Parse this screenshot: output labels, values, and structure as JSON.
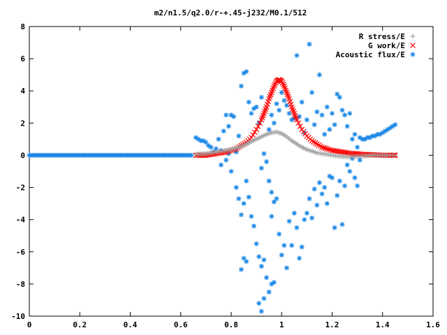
{
  "chart_data": {
    "type": "scatter",
    "title": "m2/n1.5/q2.0/r-+.45-j232/M0.1/512",
    "xlabel": "",
    "ylabel": "",
    "xlim": [
      0,
      1.6
    ],
    "ylim": [
      -10,
      8
    ],
    "x_ticks": [
      0,
      0.2,
      0.4,
      0.6,
      0.8,
      1,
      1.2,
      1.4,
      1.6
    ],
    "x_tick_labels": [
      "0",
      "0.2",
      "0.4",
      "0.6",
      "0.8",
      "1",
      "1.2",
      "1.4",
      "1.6"
    ],
    "y_ticks": [
      -10,
      -8,
      -6,
      -4,
      -2,
      0,
      2,
      4,
      6,
      8
    ],
    "y_tick_labels": [
      "-10",
      "-8",
      "-6",
      "-4",
      "-2",
      "0",
      "2",
      "4",
      "6",
      "8"
    ],
    "grid": false,
    "legend_position": "top-right",
    "series": [
      {
        "name": "Acoustic flux/E",
        "marker": "asterisk",
        "color": "#1a87e6",
        "points": [
          [
            0.0,
            0
          ],
          [
            0.05,
            0
          ],
          [
            0.1,
            0
          ],
          [
            0.15,
            0
          ],
          [
            0.2,
            0
          ],
          [
            0.25,
            0
          ],
          [
            0.3,
            0
          ],
          [
            0.35,
            0
          ],
          [
            0.4,
            0
          ],
          [
            0.45,
            0
          ],
          [
            0.5,
            0
          ],
          [
            0.55,
            0
          ],
          [
            0.6,
            0
          ],
          [
            0.64,
            0
          ],
          [
            0.66,
            1.1
          ],
          [
            0.67,
            1.0
          ],
          [
            0.68,
            0.9
          ],
          [
            0.69,
            0.9
          ],
          [
            0.7,
            0.8
          ],
          [
            0.71,
            0.6
          ],
          [
            0.72,
            0.5
          ],
          [
            0.73,
            0.2
          ],
          [
            0.74,
            0.4
          ],
          [
            0.75,
            1.0
          ],
          [
            0.76,
            0.3
          ],
          [
            0.77,
            1.5
          ],
          [
            0.78,
            2.5
          ],
          [
            0.79,
            1.8
          ],
          [
            0.8,
            2.5
          ],
          [
            0.76,
            -0.6
          ],
          [
            0.78,
            -0.3
          ],
          [
            0.79,
            0.1
          ],
          [
            0.8,
            -1.0
          ],
          [
            0.81,
            2.4
          ],
          [
            0.82,
            0.2
          ],
          [
            0.83,
            1.2
          ],
          [
            0.84,
            4.3
          ],
          [
            0.85,
            5.1
          ],
          [
            0.86,
            5.2
          ],
          [
            0.87,
            3.3
          ],
          [
            0.88,
            2.6
          ],
          [
            0.89,
            2.9
          ],
          [
            0.9,
            3.0
          ],
          [
            0.91,
            2.0
          ],
          [
            0.92,
            3.6
          ],
          [
            0.82,
            -2.0
          ],
          [
            0.83,
            -2.7
          ],
          [
            0.84,
            -3.7
          ],
          [
            0.85,
            -3.0
          ],
          [
            0.86,
            -1.6
          ],
          [
            0.87,
            -2.6
          ],
          [
            0.88,
            -3.8
          ],
          [
            0.89,
            -4.4
          ],
          [
            0.85,
            -6.4
          ],
          [
            0.86,
            -6.6
          ],
          [
            0.84,
            -7.1
          ],
          [
            0.9,
            -5.5
          ],
          [
            0.91,
            -6.3
          ],
          [
            0.92,
            -6.9
          ],
          [
            0.93,
            -6.5
          ],
          [
            0.94,
            -7.6
          ],
          [
            0.91,
            -9.2
          ],
          [
            0.92,
            -9.7
          ],
          [
            0.93,
            -8.9
          ],
          [
            0.95,
            -8.5
          ],
          [
            0.96,
            -8.0
          ],
          [
            0.97,
            -7.9
          ],
          [
            0.96,
            -3.8
          ],
          [
            0.97,
            -2.9
          ],
          [
            0.95,
            -1.6
          ],
          [
            0.94,
            -0.4
          ],
          [
            0.93,
            0.1
          ],
          [
            0.92,
            -0.8
          ],
          [
            0.96,
            -2.3
          ],
          [
            0.98,
            -2.7
          ],
          [
            0.99,
            -4.9
          ],
          [
            1.0,
            -6.2
          ],
          [
            1.01,
            -5.6
          ],
          [
            1.02,
            -7.0
          ],
          [
            1.03,
            -4.1
          ],
          [
            1.04,
            -5.6
          ],
          [
            1.05,
            -3.6
          ],
          [
            1.06,
            -4.5
          ],
          [
            1.07,
            -6.4
          ],
          [
            1.08,
            -5.7
          ],
          [
            1.09,
            -4.0
          ],
          [
            1.1,
            -3.6
          ],
          [
            1.11,
            -2.7
          ],
          [
            1.12,
            -3.9
          ],
          [
            1.13,
            -2.1
          ],
          [
            1.14,
            -3.1
          ],
          [
            1.15,
            -1.7
          ],
          [
            1.16,
            -2.4
          ],
          [
            1.17,
            -2.0
          ],
          [
            1.18,
            -3.0
          ],
          [
            1.19,
            -1.3
          ],
          [
            1.2,
            -1.4
          ],
          [
            1.21,
            -4.5
          ],
          [
            1.22,
            -2.5
          ],
          [
            1.23,
            -1.6
          ],
          [
            1.24,
            -4.3
          ],
          [
            1.25,
            -1.9
          ],
          [
            1.26,
            -0.6
          ],
          [
            1.27,
            -1.0
          ],
          [
            1.28,
            -0.2
          ],
          [
            1.29,
            -1.4
          ],
          [
            1.3,
            -1.9
          ],
          [
            1.31,
            -0.3
          ],
          [
            0.95,
            1.6
          ],
          [
            0.96,
            2.5
          ],
          [
            0.97,
            2.0
          ],
          [
            0.98,
            3.2
          ],
          [
            0.99,
            2.8
          ],
          [
            1.0,
            3.9
          ],
          [
            1.01,
            3.4
          ],
          [
            1.02,
            3.1
          ],
          [
            1.03,
            2.6
          ],
          [
            1.04,
            2.2
          ],
          [
            1.05,
            2.3
          ],
          [
            1.06,
            6.2
          ],
          [
            1.07,
            2.4
          ],
          [
            1.08,
            3.3
          ],
          [
            1.09,
            1.4
          ],
          [
            1.1,
            2.2
          ],
          [
            1.11,
            6.9
          ],
          [
            1.12,
            3.9
          ],
          [
            1.13,
            1.9
          ],
          [
            1.14,
            2.7
          ],
          [
            1.15,
            5.0
          ],
          [
            1.16,
            2.5
          ],
          [
            1.17,
            1.3
          ],
          [
            1.18,
            3.0
          ],
          [
            1.19,
            1.6
          ],
          [
            1.2,
            2.6
          ],
          [
            1.21,
            1.9
          ],
          [
            1.22,
            3.8
          ],
          [
            1.23,
            3.6
          ],
          [
            1.24,
            2.8
          ],
          [
            1.25,
            2.5
          ],
          [
            1.26,
            1.8
          ],
          [
            1.27,
            2.6
          ],
          [
            1.28,
            1.0
          ],
          [
            1.29,
            1.3
          ],
          [
            1.3,
            0.5
          ],
          [
            1.31,
            1.1
          ],
          [
            1.32,
            1.0
          ],
          [
            1.33,
            1.0
          ],
          [
            1.34,
            1.1
          ],
          [
            1.35,
            1.1
          ],
          [
            1.36,
            1.2
          ],
          [
            1.37,
            1.2
          ],
          [
            1.38,
            1.3
          ],
          [
            1.39,
            1.3
          ],
          [
            1.4,
            1.4
          ],
          [
            1.41,
            1.5
          ],
          [
            1.42,
            1.6
          ],
          [
            1.43,
            1.7
          ],
          [
            1.44,
            1.8
          ],
          [
            1.45,
            1.9
          ]
        ]
      },
      {
        "name": "G work/E",
        "marker": "x",
        "color": "#ff0000",
        "points": [
          [
            0.66,
            0.0
          ],
          [
            0.68,
            0.0
          ],
          [
            0.7,
            0.0
          ],
          [
            0.72,
            0.05
          ],
          [
            0.74,
            0.1
          ],
          [
            0.76,
            0.15
          ],
          [
            0.78,
            0.2
          ],
          [
            0.8,
            0.3
          ],
          [
            0.82,
            0.4
          ],
          [
            0.84,
            0.6
          ],
          [
            0.86,
            0.8
          ],
          [
            0.88,
            1.1
          ],
          [
            0.9,
            1.6
          ],
          [
            0.92,
            2.2
          ],
          [
            0.93,
            2.6
          ],
          [
            0.94,
            3.0
          ],
          [
            0.95,
            3.5
          ],
          [
            0.96,
            3.9
          ],
          [
            0.97,
            4.3
          ],
          [
            0.98,
            4.6
          ],
          [
            0.99,
            4.7
          ],
          [
            1.0,
            4.6
          ],
          [
            1.01,
            4.3
          ],
          [
            1.02,
            3.9
          ],
          [
            1.03,
            3.5
          ],
          [
            1.04,
            3.0
          ],
          [
            1.05,
            2.6
          ],
          [
            1.06,
            2.2
          ],
          [
            1.08,
            1.6
          ],
          [
            1.1,
            1.2
          ],
          [
            1.12,
            0.9
          ],
          [
            1.14,
            0.7
          ],
          [
            1.16,
            0.5
          ],
          [
            1.18,
            0.4
          ],
          [
            1.2,
            0.3
          ],
          [
            1.22,
            0.25
          ],
          [
            1.24,
            0.2
          ],
          [
            1.26,
            0.15
          ],
          [
            1.28,
            0.1
          ],
          [
            1.3,
            0.1
          ],
          [
            1.32,
            0.05
          ],
          [
            1.34,
            0.05
          ],
          [
            1.36,
            0.03
          ],
          [
            1.38,
            0.02
          ],
          [
            1.4,
            0.0
          ],
          [
            1.42,
            0.0
          ],
          [
            1.44,
            0.0
          ],
          [
            1.45,
            0.0
          ]
        ]
      },
      {
        "name": "R stress/E",
        "marker": "plus",
        "color": "#a0a0a0",
        "points": [
          [
            0.66,
            0.05
          ],
          [
            0.68,
            0.08
          ],
          [
            0.7,
            0.1
          ],
          [
            0.72,
            0.15
          ],
          [
            0.74,
            0.2
          ],
          [
            0.76,
            0.25
          ],
          [
            0.78,
            0.3
          ],
          [
            0.8,
            0.35
          ],
          [
            0.82,
            0.45
          ],
          [
            0.84,
            0.55
          ],
          [
            0.86,
            0.7
          ],
          [
            0.88,
            0.85
          ],
          [
            0.9,
            1.0
          ],
          [
            0.92,
            1.15
          ],
          [
            0.94,
            1.3
          ],
          [
            0.96,
            1.4
          ],
          [
            0.98,
            1.45
          ],
          [
            1.0,
            1.35
          ],
          [
            1.02,
            1.15
          ],
          [
            1.04,
            0.9
          ],
          [
            1.06,
            0.7
          ],
          [
            1.08,
            0.5
          ],
          [
            1.1,
            0.35
          ],
          [
            1.12,
            0.25
          ],
          [
            1.14,
            0.15
          ],
          [
            1.16,
            0.1
          ],
          [
            1.18,
            0.05
          ],
          [
            1.2,
            0.0
          ],
          [
            1.22,
            -0.05
          ],
          [
            1.24,
            -0.08
          ],
          [
            1.26,
            -0.1
          ],
          [
            1.28,
            -0.1
          ],
          [
            1.3,
            -0.08
          ],
          [
            1.32,
            -0.05
          ],
          [
            1.34,
            -0.03
          ],
          [
            1.36,
            0.0
          ],
          [
            1.38,
            0.0
          ],
          [
            1.4,
            0.0
          ],
          [
            1.42,
            0.0
          ],
          [
            1.45,
            0.0
          ]
        ]
      }
    ]
  }
}
